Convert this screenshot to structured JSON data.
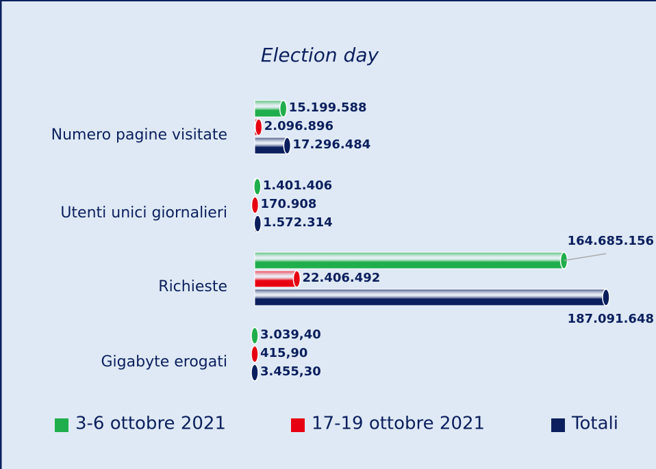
{
  "chart_data": {
    "type": "bar",
    "orientation": "horizontal",
    "title": "Election day",
    "categories": [
      "Numero pagine visitate",
      "Utenti unici giornalieri",
      "Richieste",
      "Gigabyte erogati"
    ],
    "series": [
      {
        "name": "3-6 ottobre 2021",
        "color": "#1fae4b",
        "values": [
          15199588,
          1401406,
          164685156,
          3039.4
        ],
        "value_labels": [
          "15.199.588",
          "1.401.406",
          "164.685.156",
          "3.039,40"
        ]
      },
      {
        "name": "17-19 ottobre 2021",
        "color": "#e60012",
        "values": [
          2096896,
          170908,
          22406492,
          415.9
        ],
        "value_labels": [
          "2.096.896",
          "170.908",
          "22.406.492",
          "415,90"
        ]
      },
      {
        "name": "Totali",
        "color": "#0b1f5e",
        "values": [
          17296484,
          1572314,
          187091648,
          3455.3
        ],
        "value_labels": [
          "17.296.484",
          "1.572.314",
          "187.091.648",
          "3.455,30"
        ]
      }
    ],
    "legend": "bottom"
  }
}
